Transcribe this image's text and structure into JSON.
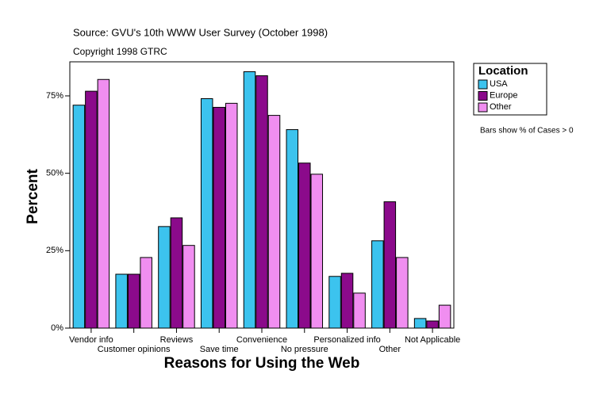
{
  "chart_data": {
    "type": "bar",
    "source": "Source: GVU's 10th WWW User Survey (October 1998)",
    "copyright": "Copyright 1998 GTRC",
    "x_label": "Reasons for Using the Web",
    "y_label": "Percent",
    "legend_title": "Location",
    "note": "Bars show % of Cases > 0",
    "categories": [
      "Vendor info",
      "Customer opinions",
      "Reviews",
      "Save time",
      "Convenience",
      "No pressure",
      "Personalized info",
      "Other",
      "Not Applicable"
    ],
    "series": [
      {
        "name": "USA",
        "color": "#3cc3ee",
        "values": [
          72,
          17.4,
          32.8,
          74.1,
          82.8,
          64.1,
          16.7,
          28.2,
          3.1
        ]
      },
      {
        "name": "Europe",
        "color": "#8b0a8b",
        "values": [
          76.5,
          17.4,
          35.6,
          71.3,
          81.5,
          53.3,
          17.7,
          40.8,
          2.3
        ]
      },
      {
        "name": "Other",
        "color": "#f08ef0",
        "values": [
          80.3,
          22.8,
          26.7,
          72.6,
          68.7,
          49.7,
          11.3,
          22.8,
          7.4
        ]
      }
    ],
    "ylim": [
      0,
      86
    ],
    "yticks": [
      {
        "value": 0,
        "label": "0%"
      },
      {
        "value": 25,
        "label": "25%"
      },
      {
        "value": 50,
        "label": "50%"
      },
      {
        "value": 75,
        "label": "75%"
      }
    ]
  }
}
